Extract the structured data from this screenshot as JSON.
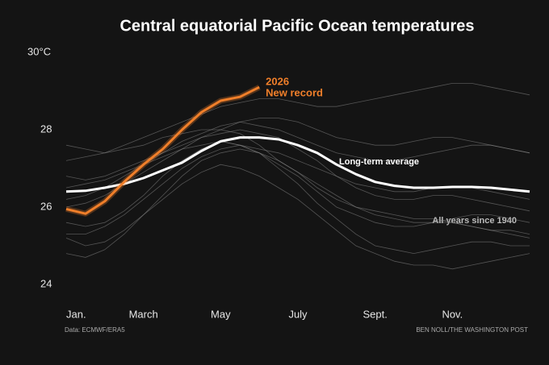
{
  "chart_data": {
    "type": "line",
    "title": "Central equatorial Pacific Ocean temperatures",
    "source": "Data: ECMWF/ERA5",
    "credit": "BEN NOLL/THE WASHINGTON POST",
    "categories": [
      "Jan.",
      null,
      null,
      null,
      "March",
      null,
      null,
      null,
      "May",
      null,
      null,
      null,
      "July",
      null,
      null,
      null,
      "Sept.",
      null,
      null,
      null,
      "Nov.",
      null,
      null,
      null,
      null
    ],
    "ylim": [
      24,
      30
    ],
    "yticks": [
      24,
      26,
      28,
      {
        "value": 30,
        "label": "30°C"
      }
    ],
    "grid": false,
    "background_series": {
      "label": "All years since 1940",
      "color": "#8a8a8a",
      "values": [
        [
          27.2,
          27.3,
          27.4,
          27.6,
          27.8,
          28.0,
          28.2,
          28.4,
          28.6,
          28.7,
          28.8,
          28.8,
          28.7,
          28.6,
          28.6,
          28.7,
          28.8,
          28.9,
          29.0,
          29.1,
          29.2,
          29.2,
          29.1,
          29.0,
          28.9
        ],
        [
          25.2,
          25.0,
          25.1,
          25.4,
          25.8,
          26.2,
          26.6,
          26.9,
          27.1,
          27.0,
          26.8,
          26.5,
          26.2,
          25.8,
          25.4,
          25.0,
          24.8,
          24.6,
          24.5,
          24.5,
          24.4,
          24.5,
          24.6,
          24.7,
          24.8
        ],
        [
          26.2,
          26.3,
          26.5,
          26.8,
          27.1,
          27.4,
          27.7,
          27.9,
          28.1,
          28.2,
          28.1,
          28.0,
          27.8,
          27.6,
          27.4,
          27.3,
          27.2,
          27.2,
          27.3,
          27.4,
          27.5,
          27.6,
          27.6,
          27.5,
          27.4
        ],
        [
          25.6,
          25.5,
          25.6,
          25.9,
          26.3,
          26.8,
          27.2,
          27.5,
          27.7,
          27.6,
          27.4,
          27.1,
          26.8,
          26.4,
          26.0,
          25.8,
          25.6,
          25.5,
          25.5,
          25.6,
          25.6,
          25.5,
          25.4,
          25.4,
          25.3
        ],
        [
          26.8,
          26.7,
          26.8,
          27.0,
          27.2,
          27.4,
          27.6,
          27.8,
          27.9,
          28.0,
          27.9,
          27.8,
          27.5,
          27.2,
          26.8,
          26.5,
          26.3,
          26.2,
          26.2,
          26.3,
          26.3,
          26.2,
          26.1,
          26.0,
          25.9
        ],
        [
          24.8,
          24.7,
          24.9,
          25.3,
          25.8,
          26.3,
          26.8,
          27.2,
          27.4,
          27.5,
          27.4,
          27.2,
          26.9,
          26.6,
          26.3,
          26.0,
          25.8,
          25.7,
          25.6,
          25.6,
          25.7,
          25.8,
          25.8,
          25.7,
          25.6
        ],
        [
          26.0,
          26.1,
          26.3,
          26.6,
          26.9,
          27.2,
          27.5,
          27.8,
          28.0,
          28.2,
          28.3,
          28.3,
          28.2,
          28.0,
          27.8,
          27.7,
          27.6,
          27.6,
          27.7,
          27.8,
          27.8,
          27.7,
          27.6,
          27.5,
          27.4
        ],
        [
          25.3,
          25.3,
          25.5,
          25.8,
          26.2,
          26.6,
          27.0,
          27.3,
          27.5,
          27.6,
          27.4,
          27.0,
          26.6,
          26.1,
          25.7,
          25.3,
          25.0,
          24.9,
          24.8,
          24.9,
          25.0,
          25.1,
          25.1,
          25.0,
          25.0
        ],
        [
          27.6,
          27.5,
          27.4,
          27.5,
          27.6,
          27.8,
          27.9,
          28.0,
          28.0,
          27.9,
          27.6,
          27.2,
          26.9,
          26.5,
          26.2,
          26.0,
          25.9,
          25.8,
          25.7,
          25.7,
          25.6,
          25.5,
          25.4,
          25.3,
          25.2
        ],
        [
          26.5,
          26.6,
          26.7,
          26.9,
          27.1,
          27.3,
          27.5,
          27.6,
          27.7,
          27.6,
          27.5,
          27.4,
          27.2,
          27.0,
          26.8,
          26.6,
          26.5,
          26.4,
          26.4,
          26.5,
          26.5,
          26.5,
          26.4,
          26.3,
          26.2
        ]
      ]
    },
    "series": [
      {
        "name": "Long-term average",
        "color": "#ffffff",
        "values": [
          26.4,
          26.42,
          26.5,
          26.6,
          26.75,
          26.95,
          27.15,
          27.45,
          27.7,
          27.8,
          27.8,
          27.75,
          27.6,
          27.4,
          27.1,
          26.85,
          26.65,
          26.55,
          26.5,
          26.5,
          26.52,
          26.52,
          26.5,
          26.45,
          26.4
        ]
      },
      {
        "name": "2026",
        "color": "#f07f2a",
        "annotation": "New record",
        "values": [
          25.95,
          25.83,
          26.15,
          26.65,
          27.1,
          27.5,
          28.0,
          28.45,
          28.75,
          28.85,
          29.1,
          null,
          null,
          null,
          null,
          null,
          null,
          null,
          null,
          null,
          null,
          null,
          null,
          null,
          null
        ]
      }
    ]
  }
}
